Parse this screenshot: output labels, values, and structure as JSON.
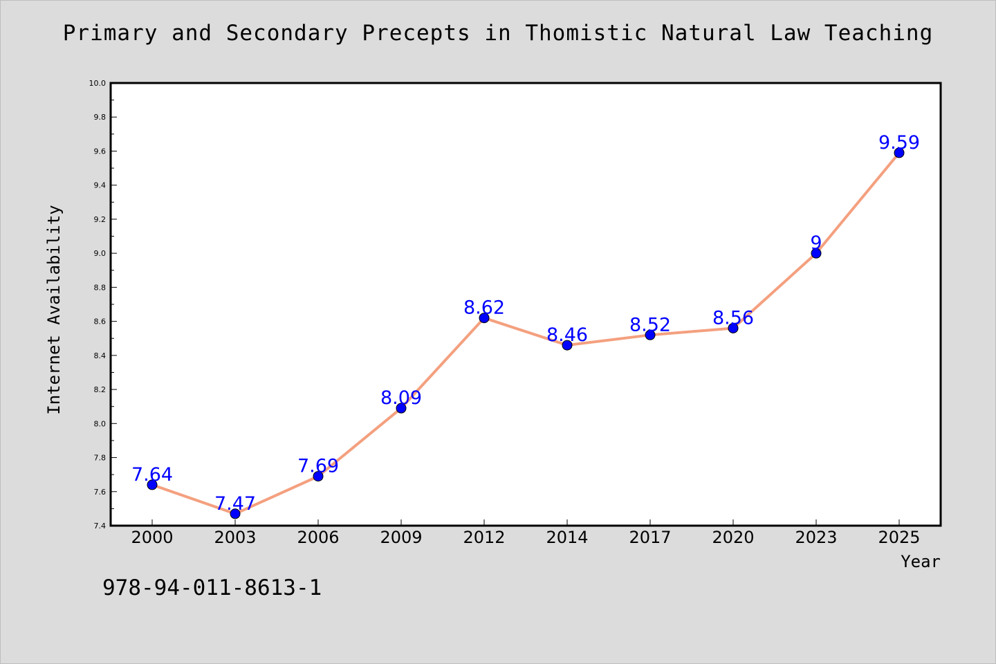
{
  "chart_data": {
    "type": "line",
    "title": "Primary and Secondary Precepts in Thomistic Natural Law Teaching",
    "xlabel": "Year",
    "ylabel": "Internet Availability",
    "categories": [
      "2000",
      "2003",
      "2006",
      "2009",
      "2012",
      "2014",
      "2017",
      "2020",
      "2023",
      "2025"
    ],
    "series": [
      {
        "values": [
          7.64,
          7.47,
          7.69,
          8.09,
          8.62,
          8.46,
          8.52,
          8.56,
          9.0,
          9.59
        ],
        "data_labels": [
          "7.64",
          "7.47",
          "7.69",
          "8.09",
          "8.62",
          "8.46",
          "8.52",
          "8.56",
          "9",
          "9.59"
        ]
      }
    ],
    "ylim": [
      7.4,
      10.0
    ],
    "yticks": [
      "7.4",
      "7.6",
      "7.8",
      "8.0",
      "8.2",
      "8.4",
      "8.6",
      "8.8",
      "9.0",
      "9.2",
      "9.4",
      "9.6",
      "9.8",
      "10.0"
    ],
    "grid": false,
    "legend": "none",
    "colors": {
      "line": "#f4a07f",
      "marker": "#0000ff",
      "data_label": "#0000ff",
      "background": "#dcdcdc",
      "plot_background": "#ffffff"
    }
  },
  "footer": {
    "isbn": "978-94-011-8613-1"
  }
}
